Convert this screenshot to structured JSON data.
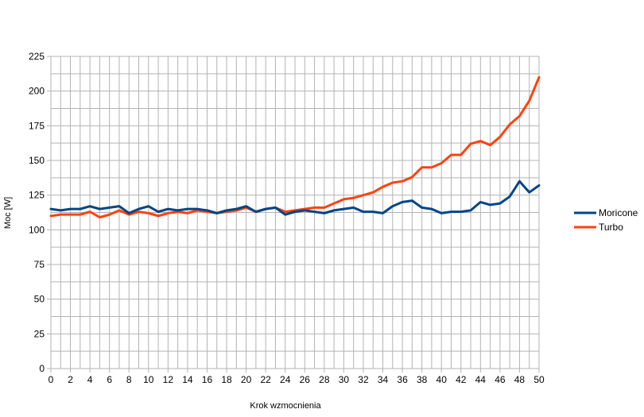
{
  "chart_data": {
    "type": "line",
    "title": "",
    "xlabel": "Krok wzmocnienia",
    "ylabel": "Moc [W]",
    "xlim": [
      0,
      50
    ],
    "ylim": [
      0,
      225
    ],
    "x_ticks": [
      0,
      2,
      4,
      6,
      8,
      10,
      12,
      14,
      16,
      18,
      20,
      22,
      24,
      26,
      28,
      30,
      32,
      34,
      36,
      38,
      40,
      42,
      44,
      46,
      48,
      50
    ],
    "y_ticks": [
      0,
      25,
      50,
      75,
      100,
      125,
      150,
      175,
      200,
      225
    ],
    "grid": true,
    "legend_position": "right",
    "x": [
      0,
      1,
      2,
      3,
      4,
      5,
      6,
      7,
      8,
      9,
      10,
      11,
      12,
      13,
      14,
      15,
      16,
      17,
      18,
      19,
      20,
      21,
      22,
      23,
      24,
      25,
      26,
      27,
      28,
      29,
      30,
      31,
      32,
      33,
      34,
      35,
      36,
      37,
      38,
      39,
      40,
      41,
      42,
      43,
      44,
      45,
      46,
      47,
      48,
      49,
      50
    ],
    "series": [
      {
        "name": "Moricone",
        "color": "#004586",
        "values": [
          115,
          114,
          115,
          115,
          117,
          115,
          116,
          117,
          112,
          115,
          117,
          113,
          115,
          114,
          115,
          115,
          114,
          112,
          114,
          115,
          117,
          113,
          115,
          116,
          111,
          113,
          114,
          113,
          112,
          114,
          115,
          116,
          113,
          113,
          112,
          117,
          120,
          121,
          116,
          115,
          112,
          113,
          113,
          114,
          120,
          118,
          119,
          124,
          135,
          127,
          132
        ]
      },
      {
        "name": "Turbo",
        "color": "#ff420e",
        "values": [
          110,
          111,
          111,
          111,
          113,
          109,
          111,
          114,
          111,
          113,
          112,
          110,
          112,
          113,
          112,
          114,
          113,
          112,
          113,
          114,
          116,
          113,
          115,
          116,
          113,
          114,
          115,
          116,
          116,
          119,
          122,
          123,
          125,
          127,
          131,
          134,
          135,
          138,
          145,
          145,
          148,
          154,
          154,
          162,
          164,
          161,
          167,
          176,
          182,
          193,
          210
        ]
      }
    ]
  }
}
